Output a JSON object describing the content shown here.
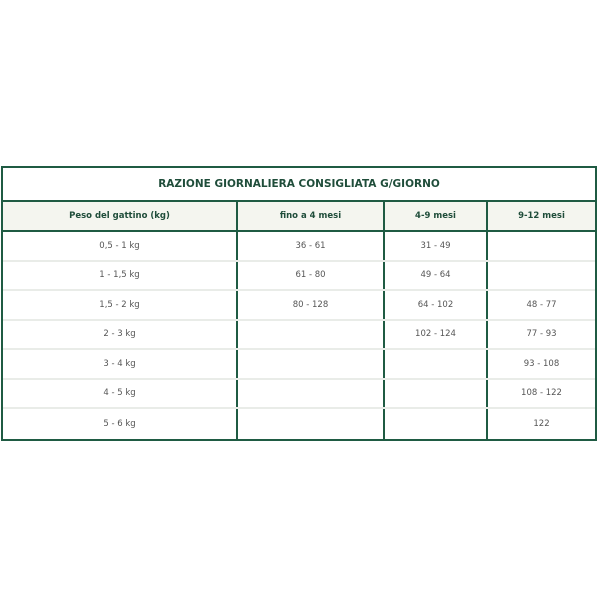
{
  "title": "RAZIONE GIORNALIERA CONSIGLIATA G/GIORNO",
  "headers": [
    "Peso del gattino (kg)",
    "fino a 4 mesi",
    "4-9 mesi",
    "9-12 mesi"
  ],
  "rows": [
    [
      "0,5 - 1 kg",
      "36 - 61",
      "31 - 49",
      ""
    ],
    [
      "1 - 1,5 kg",
      "61 - 80",
      "49 - 64",
      ""
    ],
    [
      "1,5 - 2 kg",
      "80 - 128",
      "64 - 102",
      "48 - 77"
    ],
    [
      "2 - 3 kg",
      "",
      "102 - 124",
      "77 - 93"
    ],
    [
      "3 - 4 kg",
      "",
      "",
      "93 - 108"
    ],
    [
      "4 - 5 kg",
      "",
      "",
      "108 - 122"
    ],
    [
      "5 - 6 kg",
      "",
      "",
      "122"
    ]
  ],
  "colors": {
    "border": "#1f5b43",
    "header_bg": "#f4f5ef",
    "heading_text": "#1f4d3a"
  }
}
